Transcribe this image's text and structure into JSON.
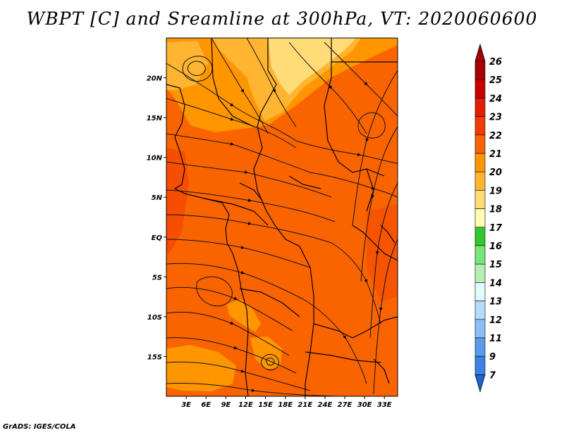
{
  "title": "WBPT [C] and Sreamline at 300hPa, VT: 2020060600",
  "credit": "GrADS: IGES/COLA",
  "map": {
    "lon_range": [
      0,
      35
    ],
    "lat_range": [
      -20,
      25
    ],
    "lat_ticks": [
      {
        "value": 20,
        "label": "20N"
      },
      {
        "value": 15,
        "label": "15N"
      },
      {
        "value": 10,
        "label": "10N"
      },
      {
        "value": 5,
        "label": "5N"
      },
      {
        "value": 0,
        "label": "EQ"
      },
      {
        "value": -5,
        "label": "5S"
      },
      {
        "value": -10,
        "label": "10S"
      },
      {
        "value": -15,
        "label": "15S"
      }
    ],
    "lon_ticks": [
      {
        "value": 3,
        "label": "3E"
      },
      {
        "value": 6,
        "label": "6E"
      },
      {
        "value": 9,
        "label": "9E"
      },
      {
        "value": 12,
        "label": "12E"
      },
      {
        "value": 15,
        "label": "15E"
      },
      {
        "value": 18,
        "label": "18E"
      },
      {
        "value": 21,
        "label": "21E"
      },
      {
        "value": 24,
        "label": "24E"
      },
      {
        "value": 27,
        "label": "27E"
      },
      {
        "value": 30,
        "label": "30E"
      },
      {
        "value": 33,
        "label": "33E"
      }
    ]
  },
  "colorbar": {
    "levels": [
      {
        "label": "26",
        "color": "#a50000"
      },
      {
        "label": "25",
        "color": "#c80000"
      },
      {
        "label": "24",
        "color": "#e11e00"
      },
      {
        "label": "23",
        "color": "#f03c00"
      },
      {
        "label": "22",
        "color": "#fa6400"
      },
      {
        "label": "21",
        "color": "#ff9600"
      },
      {
        "label": "20",
        "color": "#ffb432"
      },
      {
        "label": "19",
        "color": "#ffdc78"
      },
      {
        "label": "18",
        "color": "#fffab4"
      },
      {
        "label": "17",
        "color": "#32c832"
      },
      {
        "label": "16",
        "color": "#78e678"
      },
      {
        "label": "15",
        "color": "#b4f0b4"
      },
      {
        "label": "14",
        "color": "#e1fafa"
      },
      {
        "label": "13",
        "color": "#b4dcfa"
      },
      {
        "label": "12",
        "color": "#8cbef5"
      },
      {
        "label": "11",
        "color": "#5a9beb"
      },
      {
        "label": "9",
        "color": "#3c82e1"
      },
      {
        "label": "7",
        "color": "#1e64d2"
      }
    ]
  }
}
